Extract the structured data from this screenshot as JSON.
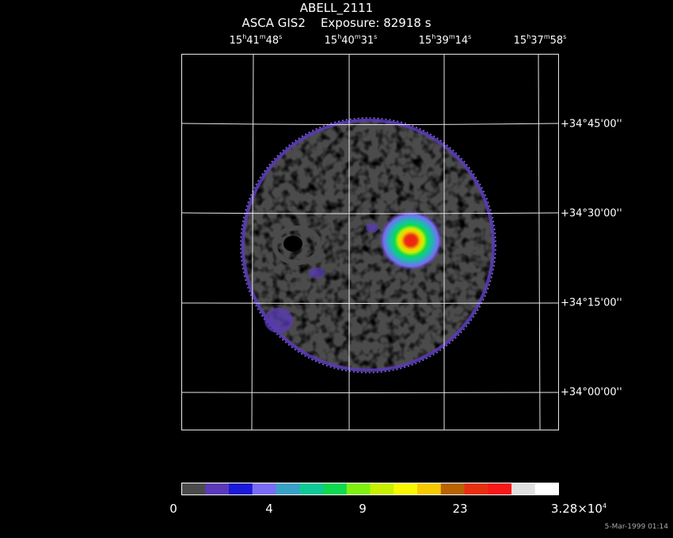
{
  "header": {
    "object_name": "ABELL_2111",
    "instrument": "ASCA GIS2",
    "exposure": "Exposure: 82918 s"
  },
  "ra_ticks": [
    {
      "h": "15",
      "m": "41",
      "s": "48"
    },
    {
      "h": "15",
      "m": "40",
      "s": "31"
    },
    {
      "h": "15",
      "m": "39",
      "s": "14"
    },
    {
      "h": "15",
      "m": "37",
      "s": "58"
    }
  ],
  "dec_ticks": [
    {
      "deg": "+34",
      "min": "45",
      "sec": "00"
    },
    {
      "deg": "+34",
      "min": "30",
      "sec": "00"
    },
    {
      "deg": "+34",
      "min": "15",
      "sec": "00"
    },
    {
      "deg": "+34",
      "min": "00",
      "sec": "00"
    }
  ],
  "colorbar": {
    "colors": [
      "#4b4b4b",
      "#5a3ab8",
      "#1a1ad8",
      "#7a6cf4",
      "#3aa0c8",
      "#10c898",
      "#10d850",
      "#80f010",
      "#c8f000",
      "#f8f800",
      "#f8c800",
      "#b86400",
      "#e83010",
      "#f81818",
      "#e0e0e0",
      "#ffffff"
    ],
    "labels": [
      "0",
      "4",
      "9",
      "23"
    ],
    "max_mantissa": "3.28×10",
    "max_exp": "4"
  },
  "timestamp": "5-Mar-1999 01:14"
}
